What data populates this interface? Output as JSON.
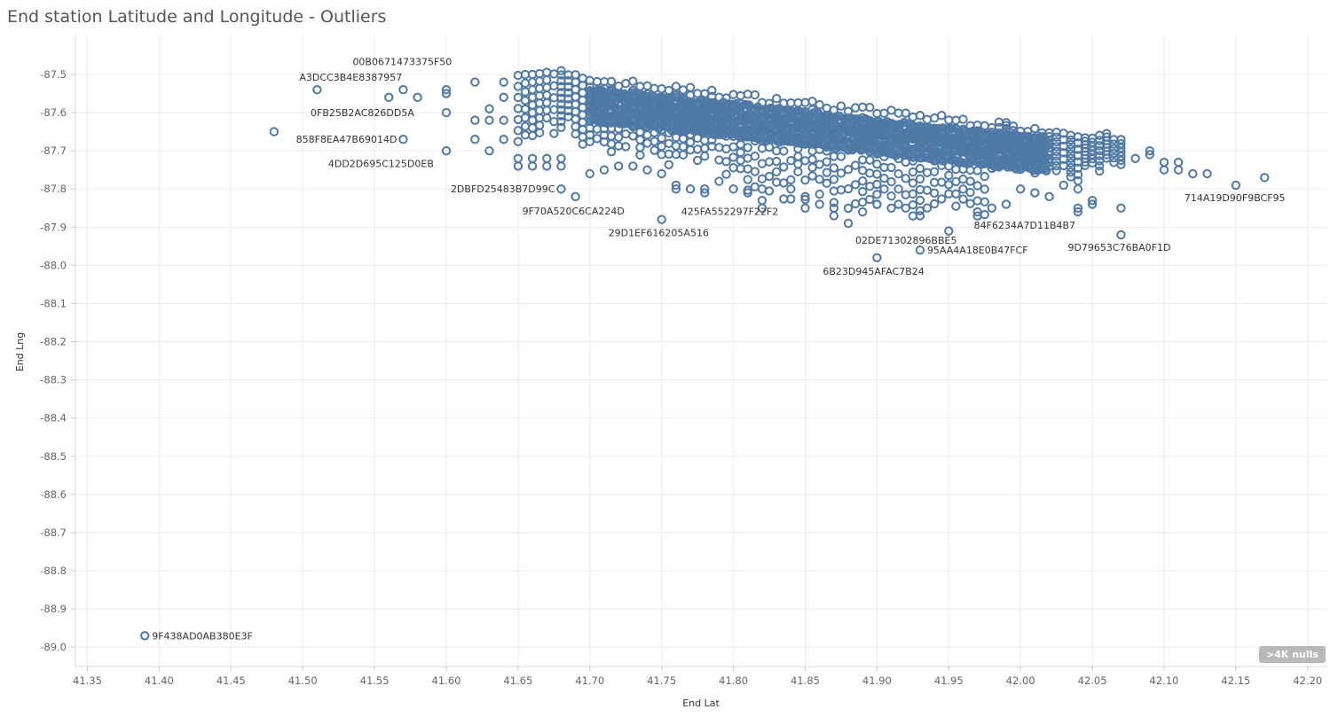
{
  "title": "End station Latitude and Longitude - Outliers",
  "nulls_indicator": ">4K nulls",
  "colors": {
    "marker": "#4e79a7",
    "grid": "#ebebeb",
    "axis_text": "#666666"
  },
  "chart_data": {
    "type": "scatter",
    "title": "End station Latitude and Longitude - Outliers",
    "xlabel": "End Lat",
    "ylabel": "End Lng",
    "xlim": [
      41.33,
      42.21
    ],
    "ylim": [
      -89.05,
      -87.45
    ],
    "x_ticks": [
      "41.35",
      "41.40",
      "41.45",
      "41.50",
      "41.55",
      "41.60",
      "41.65",
      "41.70",
      "41.75",
      "41.80",
      "41.85",
      "41.90",
      "41.95",
      "42.00",
      "42.05",
      "42.10",
      "42.15",
      "42.20"
    ],
    "y_ticks": [
      "-87.5",
      "-87.6",
      "-87.7",
      "-87.8",
      "-87.9",
      "-88.0",
      "-88.1",
      "-88.2",
      "-88.3",
      "-88.4",
      "-88.5",
      "-88.6",
      "-88.7",
      "-88.8",
      "-88.9",
      "-89.0"
    ],
    "grid": true,
    "marker": "open-circle",
    "labeled_outliers": [
      {
        "label": "A3DCC3B4E8387957",
        "x": 41.51,
        "y": -87.54
      },
      {
        "label": "00B0671473375F50",
        "x": 41.68,
        "y": -87.49
      },
      {
        "label": "0FB25B2AC826DD5A",
        "x": 41.6,
        "y": -87.6
      },
      {
        "label": "858F8EA47B69014D",
        "x": 41.57,
        "y": -87.67
      },
      {
        "label": "4DD2D695C125D0EB",
        "x": 41.65,
        "y": -87.74
      },
      {
        "label": "2DBFD25483B7D99C",
        "x": 41.68,
        "y": -87.8
      },
      {
        "label": "9F70A520C6CA224D",
        "x": 41.69,
        "y": -87.82
      },
      {
        "label": "425FA552297F22F2",
        "x": 41.81,
        "y": -87.81
      },
      {
        "label": "29D1EF616205A516",
        "x": 41.75,
        "y": -87.88
      },
      {
        "label": "02DE71302896BBE5",
        "x": 41.88,
        "y": -87.89
      },
      {
        "label": "84F6234A7D11B4B7",
        "x": 41.97,
        "y": -87.86
      },
      {
        "label": "95AA4A18E0B47FCF",
        "x": 41.93,
        "y": -87.96
      },
      {
        "label": "6B23D945AFAC7B24",
        "x": 41.9,
        "y": -87.98
      },
      {
        "label": "9D79653C76BA0F1D",
        "x": 42.07,
        "y": -87.92
      },
      {
        "label": "714A19D90F9BCF95",
        "x": 42.15,
        "y": -87.79
      },
      {
        "label": "9F438AD0AB380E3F",
        "x": 41.39,
        "y": -88.97
      }
    ],
    "other_points": [
      [
        41.48,
        -87.65
      ],
      [
        41.56,
        -87.56
      ],
      [
        41.58,
        -87.56
      ],
      [
        41.57,
        -87.54
      ],
      [
        41.6,
        -87.54
      ],
      [
        41.6,
        -87.55
      ],
      [
        41.62,
        -87.52
      ],
      [
        41.62,
        -87.62
      ],
      [
        41.62,
        -87.67
      ],
      [
        41.6,
        -87.7
      ],
      [
        41.63,
        -87.59
      ],
      [
        41.63,
        -87.62
      ],
      [
        41.63,
        -87.7
      ],
      [
        41.64,
        -87.52
      ],
      [
        41.64,
        -87.56
      ],
      [
        41.64,
        -87.62
      ],
      [
        41.64,
        -87.67
      ],
      [
        41.65,
        -87.72
      ],
      [
        41.66,
        -87.72
      ],
      [
        41.66,
        -87.74
      ],
      [
        41.67,
        -87.72
      ],
      [
        41.67,
        -87.74
      ],
      [
        41.68,
        -87.74
      ],
      [
        41.68,
        -87.72
      ],
      [
        41.7,
        -87.76
      ],
      [
        41.71,
        -87.75
      ],
      [
        41.72,
        -87.74
      ],
      [
        41.73,
        -87.74
      ],
      [
        41.74,
        -87.75
      ],
      [
        41.75,
        -87.76
      ],
      [
        41.76,
        -87.79
      ],
      [
        41.76,
        -87.8
      ],
      [
        41.77,
        -87.8
      ],
      [
        41.78,
        -87.81
      ],
      [
        41.78,
        -87.8
      ],
      [
        41.79,
        -87.78
      ],
      [
        41.8,
        -87.8
      ],
      [
        41.82,
        -87.8
      ],
      [
        41.82,
        -87.83
      ],
      [
        41.82,
        -87.85
      ],
      [
        41.84,
        -87.8
      ],
      [
        41.85,
        -87.82
      ],
      [
        41.85,
        -87.85
      ],
      [
        41.86,
        -87.84
      ],
      [
        41.87,
        -87.85
      ],
      [
        41.87,
        -87.87
      ],
      [
        41.89,
        -87.86
      ],
      [
        41.9,
        -87.84
      ],
      [
        41.91,
        -87.85
      ],
      [
        41.92,
        -87.85
      ],
      [
        41.93,
        -87.87
      ],
      [
        41.95,
        -87.91
      ],
      [
        41.98,
        -87.85
      ],
      [
        41.99,
        -87.84
      ],
      [
        42.0,
        -87.8
      ],
      [
        42.01,
        -87.81
      ],
      [
        42.02,
        -87.82
      ],
      [
        42.03,
        -87.79
      ],
      [
        42.04,
        -87.8
      ],
      [
        42.04,
        -87.85
      ],
      [
        42.04,
        -87.86
      ],
      [
        42.05,
        -87.83
      ],
      [
        42.05,
        -87.84
      ],
      [
        42.07,
        -87.85
      ],
      [
        42.08,
        -87.72
      ],
      [
        42.09,
        -87.7
      ],
      [
        42.09,
        -87.71
      ],
      [
        42.1,
        -87.73
      ],
      [
        42.1,
        -87.75
      ],
      [
        42.11,
        -87.73
      ],
      [
        42.11,
        -87.75
      ],
      [
        42.12,
        -87.76
      ],
      [
        42.13,
        -87.76
      ],
      [
        42.17,
        -87.77
      ]
    ]
  }
}
